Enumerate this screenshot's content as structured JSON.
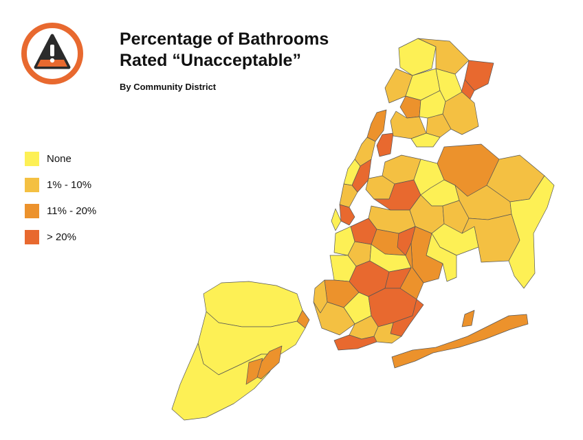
{
  "title": {
    "line1": "Percentage of Bathrooms",
    "line2": "Rated “Unacceptable”",
    "subtitle": "By Community District"
  },
  "icon": "warning-triangle-icon",
  "colors": {
    "accent": "#E8692F",
    "none": "#FDF055",
    "low": "#F4C042",
    "mid": "#EC922C",
    "high": "#E8692F",
    "water": "#FFFFFF"
  },
  "legend": [
    {
      "label": "None",
      "category": "none",
      "color": "#FDF055"
    },
    {
      "label": "1% - 10%",
      "category": "low",
      "color": "#F4C042"
    },
    {
      "label": "11% - 20%",
      "category": "mid",
      "color": "#EC922C"
    },
    {
      "label": "> 20%",
      "category": "high",
      "color": "#E8692F"
    }
  ]
}
